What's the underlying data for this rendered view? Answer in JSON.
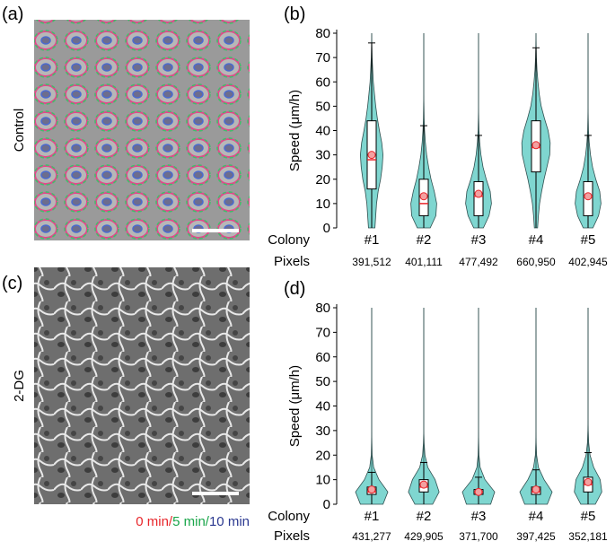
{
  "panels": [
    {
      "label": "(a)",
      "side_label": "Control"
    },
    {
      "label": "(c)",
      "side_label": "2-DG"
    }
  ],
  "legend": [
    {
      "text": "0 min/",
      "color": "#e8262b"
    },
    {
      "text": "5 min/",
      "color": "#1aa64a"
    },
    {
      "text": "10 min",
      "color": "#2b3990"
    }
  ],
  "chart_data": [
    {
      "type": "violin",
      "panel_label": "(b)",
      "ylabel": "Speed (μm/h)",
      "ylim": [
        0,
        80
      ],
      "yticks": [
        0,
        10,
        20,
        30,
        40,
        50,
        60,
        70,
        80
      ],
      "row_labels": [
        "Colony",
        "Pixels"
      ],
      "categories": [
        "#1",
        "#2",
        "#3",
        "#4",
        "#5"
      ],
      "pixels": [
        "391,512",
        "401,111",
        "477,492",
        "660,950",
        "402,945"
      ],
      "color": "#7fd6d0",
      "q1": [
        16,
        5,
        5,
        23,
        5
      ],
      "median": [
        28,
        10,
        13,
        33,
        13
      ],
      "q3": [
        44,
        20,
        19,
        44,
        19
      ],
      "mean": [
        30,
        13,
        14,
        34,
        13
      ],
      "whisker_low": [
        0,
        0,
        0,
        0,
        0
      ],
      "whisker_high": [
        76,
        42,
        38,
        74,
        38
      ],
      "max": [
        80,
        80,
        80,
        80,
        80
      ],
      "density_y": [
        0,
        5,
        10,
        15,
        20,
        25,
        30,
        35,
        40,
        45,
        50,
        55,
        60,
        65,
        70,
        75,
        80
      ],
      "density": [
        [
          0.2,
          0.25,
          0.3,
          0.4,
          0.55,
          0.65,
          0.7,
          0.62,
          0.48,
          0.35,
          0.25,
          0.17,
          0.1,
          0.06,
          0.03,
          0.01,
          0
        ],
        [
          0.4,
          0.75,
          0.8,
          0.65,
          0.45,
          0.3,
          0.18,
          0.1,
          0.05,
          0.02,
          0.01,
          0,
          0,
          0,
          0,
          0,
          0
        ],
        [
          0.3,
          0.65,
          0.8,
          0.72,
          0.48,
          0.28,
          0.15,
          0.07,
          0.03,
          0.01,
          0,
          0,
          0,
          0,
          0,
          0,
          0
        ],
        [
          0.1,
          0.15,
          0.22,
          0.35,
          0.5,
          0.68,
          0.85,
          0.88,
          0.75,
          0.52,
          0.32,
          0.2,
          0.12,
          0.06,
          0.03,
          0.01,
          0
        ],
        [
          0.3,
          0.65,
          0.8,
          0.72,
          0.48,
          0.28,
          0.15,
          0.07,
          0.03,
          0.01,
          0,
          0,
          0,
          0,
          0,
          0,
          0
        ]
      ]
    },
    {
      "type": "violin",
      "panel_label": "(d)",
      "ylabel": "Speed (μm/h)",
      "ylim": [
        0,
        80
      ],
      "yticks": [
        0,
        10,
        20,
        30,
        40,
        50,
        60,
        70,
        80
      ],
      "row_labels": [
        "Colony",
        "Pixels"
      ],
      "categories": [
        "#1",
        "#2",
        "#3",
        "#4",
        "#5"
      ],
      "pixels": [
        "431,277",
        "429,905",
        "371,700",
        "397,425",
        "352,181"
      ],
      "color": "#7fd6d0",
      "q1": [
        4,
        5,
        4,
        4,
        5
      ],
      "median": [
        5,
        7,
        5,
        5,
        8
      ],
      "q3": [
        7,
        10,
        6,
        7,
        11
      ],
      "mean": [
        6,
        8,
        5,
        6,
        9
      ],
      "whisker_low": [
        0,
        0,
        0,
        0,
        0
      ],
      "whisker_high": [
        13,
        17,
        11,
        14,
        21
      ],
      "max": [
        80,
        80,
        80,
        80,
        80
      ],
      "density_y": [
        0,
        5,
        10,
        15,
        20,
        25,
        30,
        35,
        40,
        45,
        50,
        55,
        60,
        65,
        70,
        75,
        80
      ],
      "density": [
        [
          0.7,
          1.0,
          0.45,
          0.12,
          0.03,
          0.01,
          0,
          0,
          0,
          0,
          0,
          0,
          0,
          0,
          0,
          0,
          0
        ],
        [
          0.55,
          0.95,
          0.7,
          0.25,
          0.07,
          0.02,
          0,
          0,
          0,
          0,
          0,
          0,
          0,
          0,
          0,
          0,
          0
        ],
        [
          0.75,
          1.0,
          0.4,
          0.1,
          0.03,
          0.01,
          0,
          0,
          0,
          0,
          0,
          0,
          0,
          0,
          0,
          0,
          0
        ],
        [
          0.7,
          1.0,
          0.5,
          0.15,
          0.04,
          0.01,
          0,
          0,
          0,
          0,
          0,
          0,
          0,
          0,
          0,
          0,
          0
        ],
        [
          0.45,
          0.85,
          0.75,
          0.35,
          0.12,
          0.04,
          0.01,
          0,
          0,
          0,
          0,
          0,
          0,
          0,
          0,
          0,
          0
        ]
      ]
    }
  ]
}
